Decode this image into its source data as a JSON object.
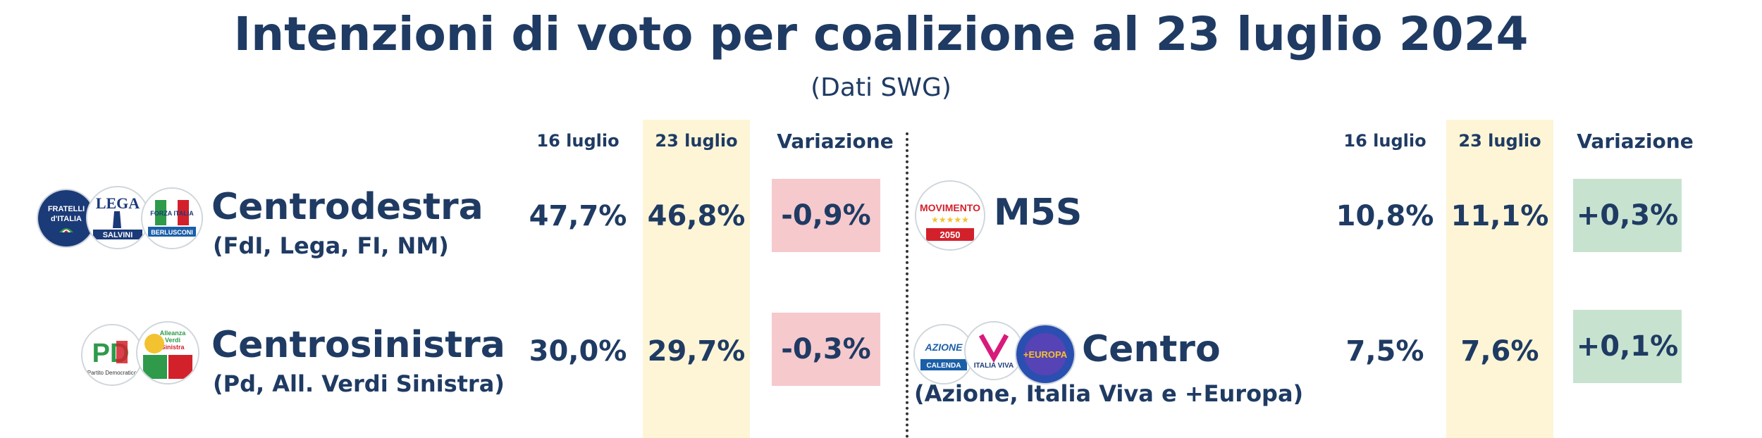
{
  "title": "Intenzioni di voto per coalizione al 23 luglio 2024",
  "subtitle": "(Dati SWG)",
  "columns": {
    "col1": "16 luglio",
    "col2": "23 luglio",
    "col3": "Variazione"
  },
  "left": {
    "row1": {
      "name": "Centrodestra",
      "sub": "(FdI, Lega, FI, NM)",
      "v16": "47,7%",
      "v23": "46,8%",
      "change": "-0,9%"
    },
    "row2": {
      "name": "Centrosinistra",
      "sub": "(Pd, All. Verdi Sinistra)",
      "v16": "30,0%",
      "v23": "29,7%",
      "change": "-0,3%"
    }
  },
  "right": {
    "row1": {
      "name": "M5S",
      "sub": "",
      "v16": "10,8%",
      "v23": "11,1%",
      "change": "+0,3%"
    },
    "row2": {
      "name": "Centro",
      "sub": "(Azione, Italia Viva e +Europa)",
      "v16": "7,5%",
      "v23": "7,6%",
      "change": "+0,1%"
    }
  },
  "logos": {
    "fdi": "FRATELLI d'ITALIA",
    "lega": "LEGA",
    "lega_sub": "SALVINI",
    "fi": "FORZA ITALIA",
    "fi_sub": "BERLUSCONI",
    "pd": "PD",
    "avs": "Alleanza Verdi Sinistra",
    "m5s": "MOVIMENTO",
    "m5s_year": "2050",
    "azione": "AZIONE",
    "azione_sub": "CALENDA",
    "iv": "ITALIA VIVA",
    "europa": "+EUROPA"
  },
  "colors": {
    "text": "#1f3b63",
    "highlight_column": "#fdf5d6",
    "negative": "#f6c9cd",
    "positive": "#c7e3cf"
  },
  "chart_data": {
    "type": "table",
    "title": "Intenzioni di voto per coalizione al 23 luglio 2024",
    "subtitle": "(Dati SWG)",
    "columns": [
      "16 luglio",
      "23 luglio",
      "Variazione"
    ],
    "rows": [
      {
        "coalition": "Centrodestra",
        "detail": "(FdI, Lega, FI, NM)",
        "values": [
          47.7,
          46.8,
          -0.9
        ]
      },
      {
        "coalition": "Centrosinistra",
        "detail": "(Pd, All. Verdi Sinistra)",
        "values": [
          30.0,
          29.7,
          -0.3
        ]
      },
      {
        "coalition": "M5S",
        "detail": "",
        "values": [
          10.8,
          11.1,
          0.3
        ]
      },
      {
        "coalition": "Centro",
        "detail": "(Azione, Italia Viva e +Europa)",
        "values": [
          7.5,
          7.6,
          0.1
        ]
      }
    ]
  }
}
